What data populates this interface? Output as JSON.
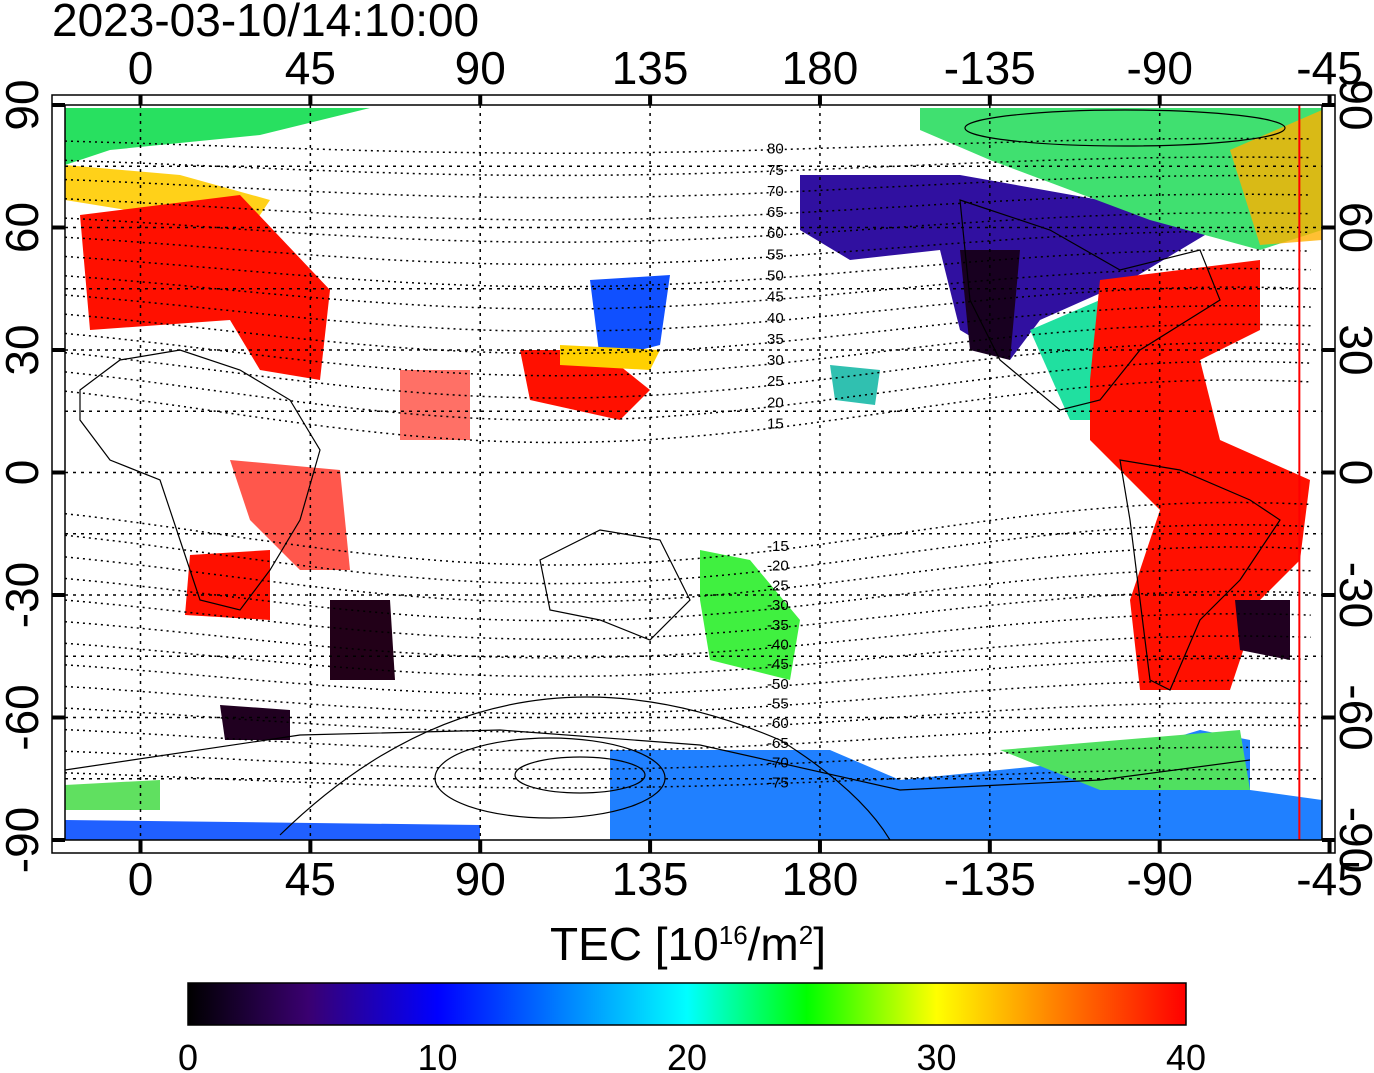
{
  "title": "2023-03-10/14:10:00",
  "map": {
    "lon_ticks": [
      "0",
      "45",
      "90",
      "135",
      "180",
      "-135",
      "-90",
      "-45"
    ],
    "lon_values": [
      0,
      45,
      90,
      135,
      180,
      225,
      270,
      315
    ],
    "lat_ticks": [
      "90",
      "60",
      "30",
      "0",
      "-30",
      "-60",
      "-90"
    ],
    "lat_values": [
      90,
      60,
      30,
      0,
      -30,
      -60,
      -90
    ],
    "lon_range": [
      -20,
      313
    ],
    "lat_range": [
      -90,
      90
    ],
    "terminator_lon": 307,
    "mag_lat_labels": [
      "80",
      "75",
      "70",
      "65",
      "60",
      "55",
      "50",
      "45",
      "40",
      "35",
      "30",
      "25",
      "20",
      "15",
      "-15",
      "-20",
      "-25",
      "-30",
      "-35",
      "-40",
      "-45",
      "-50",
      "-55",
      "-60",
      "-65",
      "-70",
      "-75"
    ],
    "mag_lat_values": [
      80,
      75,
      70,
      65,
      60,
      55,
      50,
      45,
      40,
      35,
      30,
      25,
      20,
      15,
      -15,
      -20,
      -25,
      -30,
      -35,
      -40,
      -45,
      -50,
      -55,
      -60,
      -65,
      -70,
      -75
    ]
  },
  "colorbar": {
    "label_main": "TEC  [10",
    "label_sup": "16",
    "label_unit": "/m",
    "label_sup2": "2",
    "label_end": "]",
    "ticks": [
      "0",
      "10",
      "20",
      "30",
      "40"
    ],
    "range": [
      0,
      40
    ],
    "colors": [
      "#000000",
      "#3a0070",
      "#0000ff",
      "#00ffff",
      "#00ff00",
      "#ffff00",
      "#ff8000",
      "#ff0000"
    ]
  }
}
